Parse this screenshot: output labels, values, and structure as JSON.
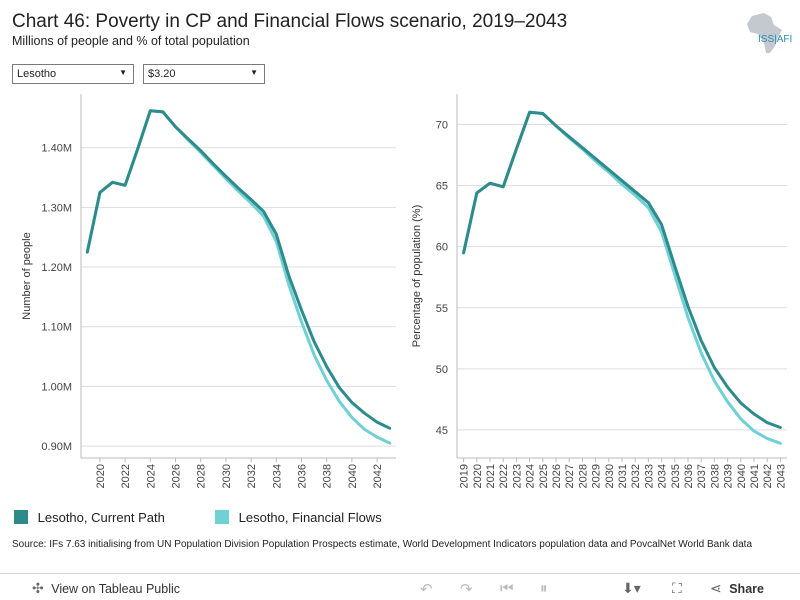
{
  "header": {
    "title": "Chart 46: Poverty in CP and Financial Flows scenario, 2019–2043",
    "subtitle": "Millions of people and % of total population",
    "logo_text": "ISS|AFI"
  },
  "filters": {
    "country": "Lesotho",
    "threshold": "$3.20"
  },
  "colors": {
    "current_path": "#2e8b8b",
    "financial_flows": "#6fd0d6",
    "gridline": "#dddddd",
    "axis": "#bbbbbb"
  },
  "chart_data": [
    {
      "type": "line",
      "title": "",
      "xlabel": "",
      "ylabel": "Number of people",
      "x": [
        2019,
        2020,
        2021,
        2022,
        2023,
        2024,
        2025,
        2026,
        2027,
        2028,
        2029,
        2030,
        2031,
        2032,
        2033,
        2034,
        2035,
        2036,
        2037,
        2038,
        2039,
        2040,
        2041,
        2042,
        2043
      ],
      "xticks": [
        "2020",
        "2022",
        "2024",
        "2026",
        "2028",
        "2030",
        "2032",
        "2034",
        "2036",
        "2038",
        "2040",
        "2042"
      ],
      "xtick_values": [
        2020,
        2022,
        2024,
        2026,
        2028,
        2030,
        2032,
        2034,
        2036,
        2038,
        2040,
        2042
      ],
      "yticks": [
        "0.90M",
        "1.00M",
        "1.10M",
        "1.20M",
        "1.30M",
        "1.40M"
      ],
      "ytick_values": [
        0.9,
        1.0,
        1.1,
        1.2,
        1.3,
        1.4
      ],
      "ylim": [
        0.88,
        1.49
      ],
      "xlim": [
        2018.5,
        2043.5
      ],
      "series": [
        {
          "name": "Lesotho, Current Path",
          "values": [
            1.225,
            1.325,
            1.342,
            1.337,
            1.398,
            1.462,
            1.46,
            1.435,
            1.415,
            1.395,
            1.373,
            1.352,
            1.332,
            1.313,
            1.293,
            1.255,
            1.185,
            1.128,
            1.075,
            1.033,
            0.998,
            0.973,
            0.955,
            0.94,
            0.93
          ]
        },
        {
          "name": "Lesotho, Financial Flows",
          "values": [
            1.225,
            1.325,
            1.342,
            1.337,
            1.398,
            1.462,
            1.46,
            1.435,
            1.413,
            1.392,
            1.37,
            1.348,
            1.327,
            1.307,
            1.285,
            1.243,
            1.17,
            1.108,
            1.053,
            1.01,
            0.975,
            0.948,
            0.928,
            0.915,
            0.905
          ]
        }
      ]
    },
    {
      "type": "line",
      "title": "",
      "xlabel": "",
      "ylabel": "Percentage of population (%)",
      "x": [
        2019,
        2020,
        2021,
        2022,
        2023,
        2024,
        2025,
        2026,
        2027,
        2028,
        2029,
        2030,
        2031,
        2032,
        2033,
        2034,
        2035,
        2036,
        2037,
        2038,
        2039,
        2040,
        2041,
        2042,
        2043
      ],
      "xticks": [
        "2019",
        "2020",
        "2021",
        "2022",
        "2023",
        "2024",
        "2025",
        "2026",
        "2027",
        "2028",
        "2029",
        "2030",
        "2031",
        "2032",
        "2033",
        "2034",
        "2035",
        "2036",
        "2037",
        "2038",
        "2039",
        "2040",
        "2041",
        "2042",
        "2043"
      ],
      "xtick_values": [
        2019,
        2020,
        2021,
        2022,
        2023,
        2024,
        2025,
        2026,
        2027,
        2028,
        2029,
        2030,
        2031,
        2032,
        2033,
        2034,
        2035,
        2036,
        2037,
        2038,
        2039,
        2040,
        2041,
        2042,
        2043
      ],
      "yticks": [
        "45",
        "50",
        "55",
        "60",
        "65",
        "70"
      ],
      "ytick_values": [
        45,
        50,
        55,
        60,
        65,
        70
      ],
      "ylim": [
        42.7,
        72.5
      ],
      "xlim": [
        2018.5,
        2043.5
      ],
      "series": [
        {
          "name": "Lesotho, Current Path",
          "values": [
            59.5,
            64.4,
            65.2,
            64.9,
            68.0,
            71.0,
            70.9,
            69.9,
            69.0,
            68.1,
            67.2,
            66.3,
            65.4,
            64.5,
            63.6,
            61.8,
            58.4,
            55.1,
            52.3,
            50.1,
            48.5,
            47.2,
            46.3,
            45.6,
            45.2
          ]
        },
        {
          "name": "Lesotho, Financial Flows",
          "values": [
            59.5,
            64.4,
            65.2,
            64.9,
            68.0,
            71.0,
            70.9,
            69.9,
            68.9,
            68.0,
            67.0,
            66.1,
            65.1,
            64.2,
            63.2,
            61.2,
            57.7,
            54.2,
            51.3,
            49.0,
            47.3,
            45.9,
            44.9,
            44.3,
            43.9
          ]
        }
      ]
    }
  ],
  "legend": {
    "items": [
      "Lesotho, Current Path",
      "Lesotho, Financial Flows"
    ]
  },
  "source": "Source: IFs 7.63 initialising from UN Population Division Population Prospects estimate, World Development Indicators population data and PovcalNet World Bank data",
  "toolbar": {
    "view_label": "View on Tableau Public",
    "share_label": "Share"
  }
}
